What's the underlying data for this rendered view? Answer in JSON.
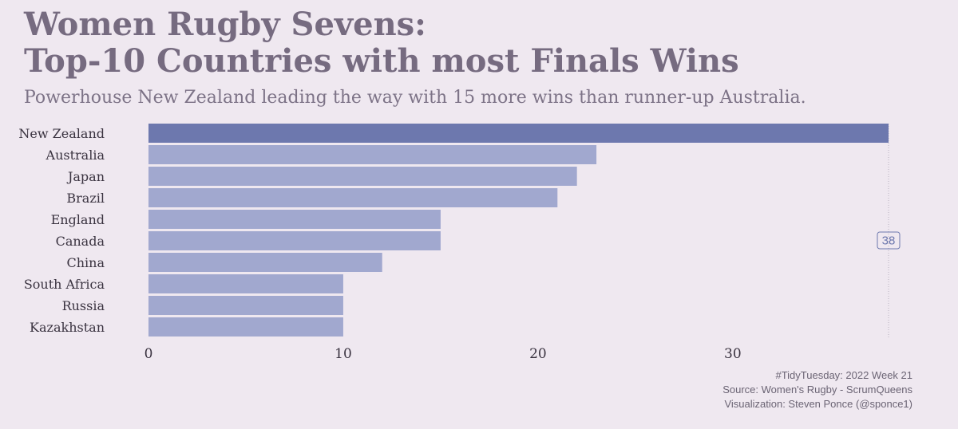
{
  "title_lines": [
    "Women Rugby Sevens:",
    "Top-10 Countries with most Finals Wins"
  ],
  "subtitle": "Powerhouse New Zealand leading the way with 15 more wins than runner-up Australia.",
  "caption": [
    "#TidyTuesday: 2022 Week 21",
    "Source: Women's Rugby - ScrumQueens",
    "Visualization: Steven Ponce (@sponce1)"
  ],
  "colors": {
    "highlight": "#6d78ae",
    "bar": "#a1a8cf",
    "max_label": "#6d78ae"
  },
  "chart_data": {
    "type": "bar",
    "orientation": "horizontal",
    "categories": [
      "New Zealand",
      "Australia",
      "Japan",
      "Brazil",
      "England",
      "Canada",
      "China",
      "South Africa",
      "Russia",
      "Kazakhstan"
    ],
    "values": [
      38,
      23,
      22,
      21,
      15,
      15,
      12,
      10,
      10,
      10
    ],
    "highlight_category": "New Zealand",
    "xlim": [
      0,
      38
    ],
    "xticks": [
      0,
      10,
      20,
      30
    ],
    "max_label": "38",
    "title": "Women Rugby Sevens: Top-10 Countries with most Finals Wins",
    "xlabel": "",
    "ylabel": "",
    "grid": false,
    "legend": "none"
  }
}
